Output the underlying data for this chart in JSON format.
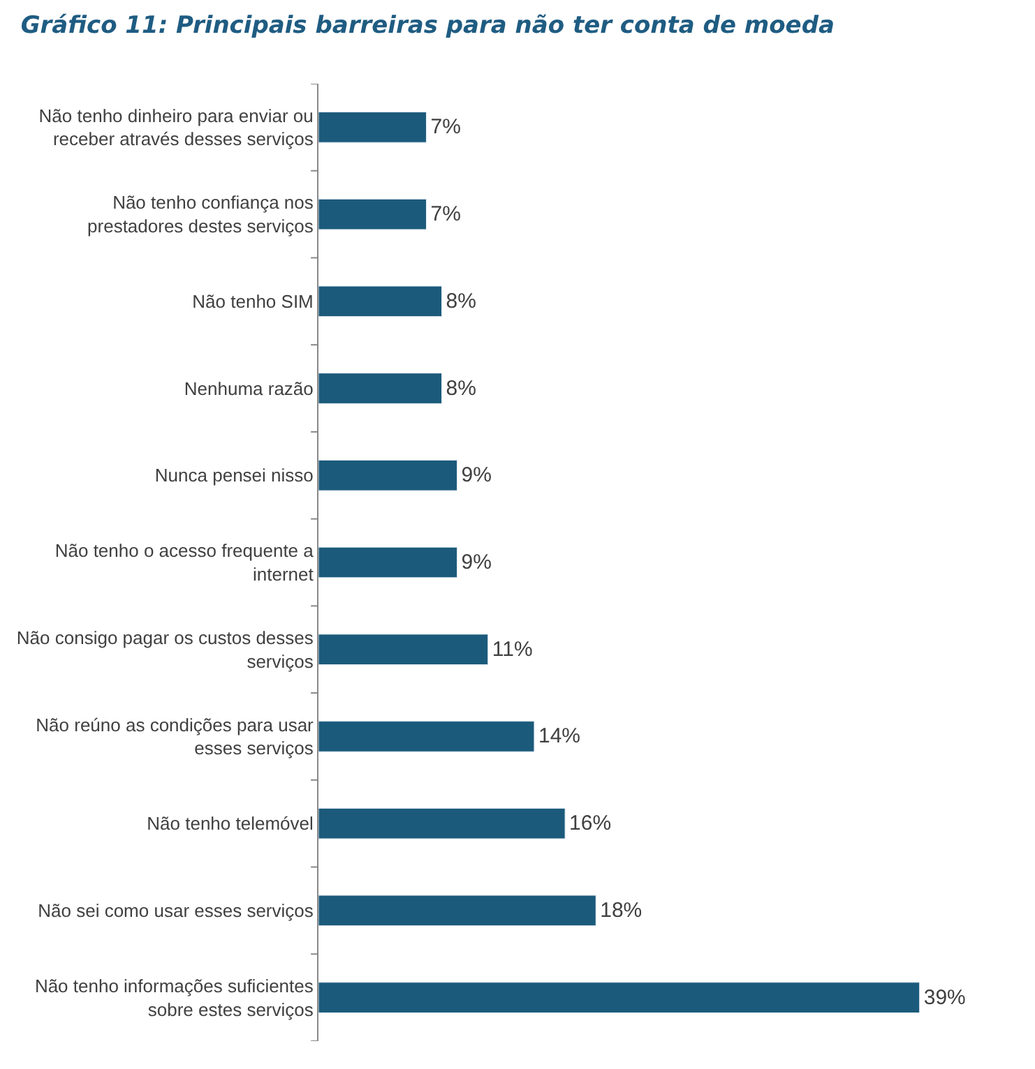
{
  "chart_data": {
    "type": "bar",
    "orientation": "horizontal",
    "title": "Gráfico 11: Principais barreiras para não ter conta de moeda",
    "categories": [
      "Não tenho dinheiro para enviar ou receber através desses serviços",
      "Não tenho confiança nos prestadores destes serviços",
      "Não tenho SIM",
      "Nenhuma razão",
      "Nunca pensei nisso",
      "Não tenho o acesso frequente a internet",
      "Não consigo pagar os custos desses serviços",
      "Não reúno as condições para usar esses serviços",
      "Não tenho telemóvel",
      "Não sei como usar esses serviços",
      "Não tenho informações suficientes sobre estes serviços"
    ],
    "values": [
      7,
      7,
      8,
      8,
      9,
      9,
      11,
      14,
      16,
      18,
      39
    ],
    "value_labels": [
      "7%",
      "7%",
      "8%",
      "8%",
      "9%",
      "9%",
      "11%",
      "14%",
      "16%",
      "18%",
      "39%"
    ],
    "color": "#1b5a7a"
  }
}
